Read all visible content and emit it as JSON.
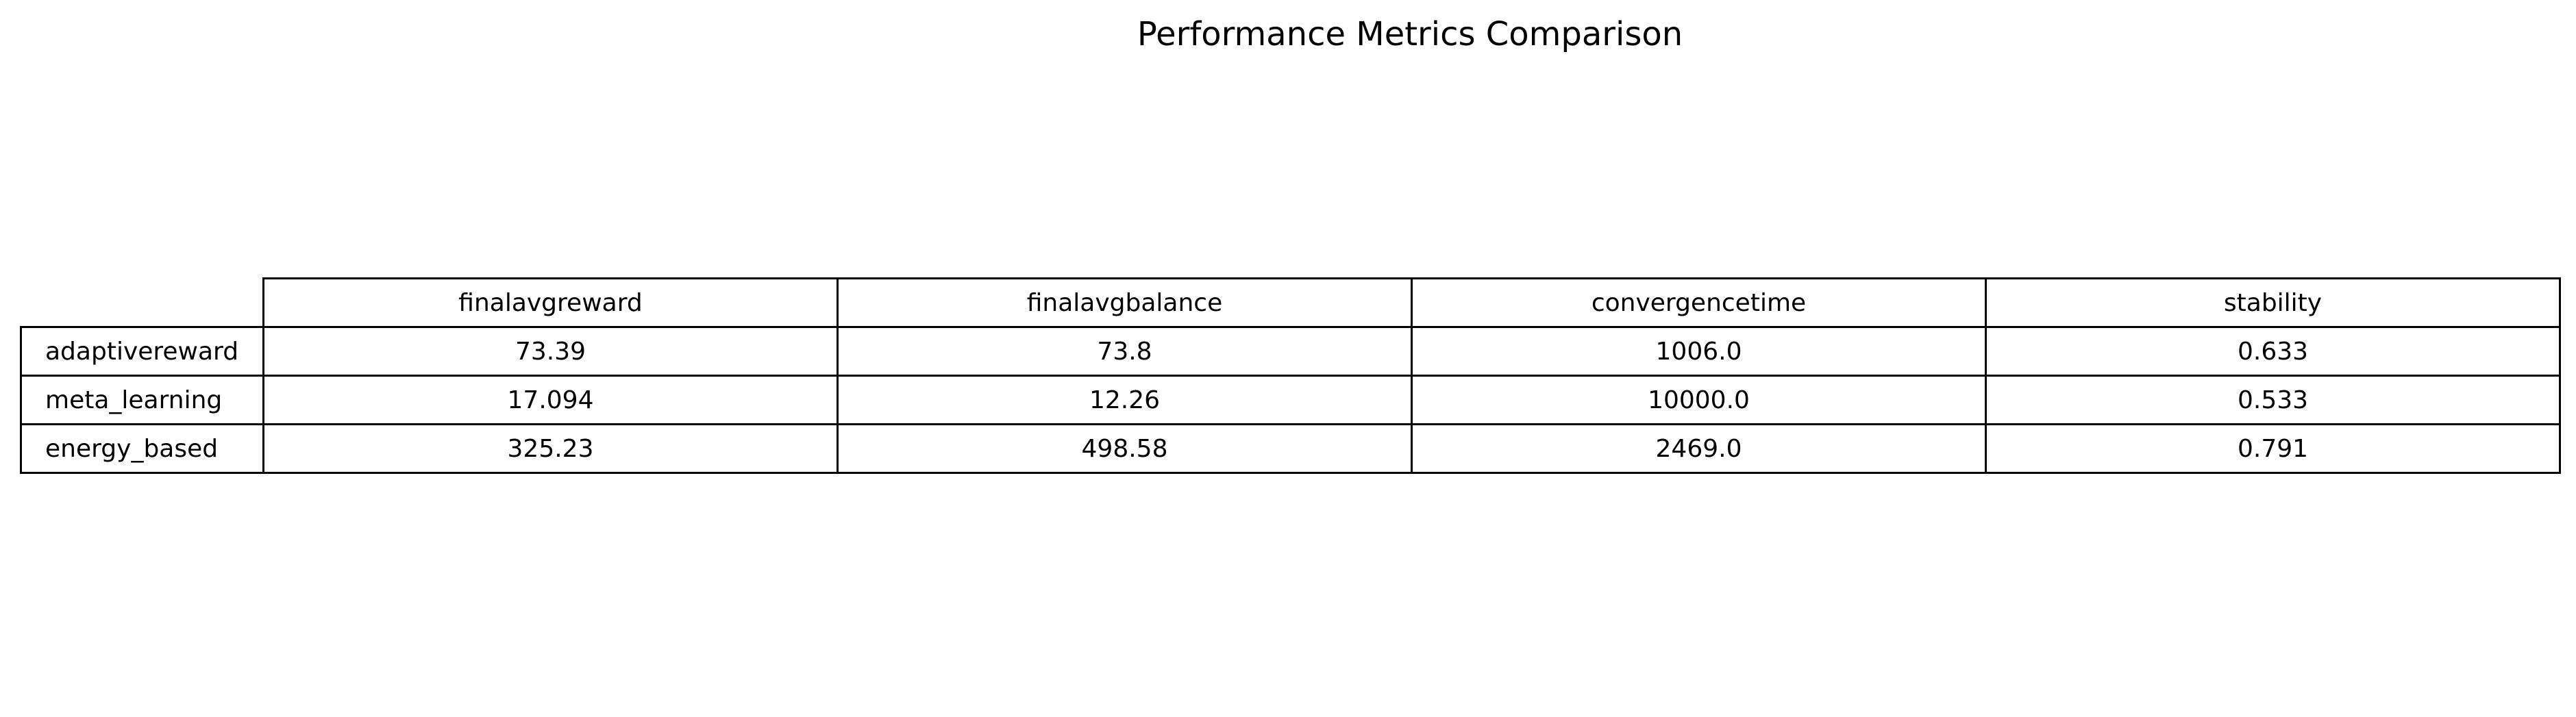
{
  "chart_data": {
    "type": "table",
    "title": "Performance Metrics Comparison",
    "columns": [
      "finalavgreward",
      "finalavgbalance",
      "convergencetime",
      "stability"
    ],
    "rows": [
      {
        "label": "adaptivereward",
        "values": [
          "73.39",
          "73.8",
          "1006.0",
          "0.633"
        ]
      },
      {
        "label": "meta_learning",
        "values": [
          "17.094",
          "12.26",
          "10000.0",
          "0.533"
        ]
      },
      {
        "label": "energy_based",
        "values": [
          "325.23",
          "498.58",
          "2469.0",
          "0.791"
        ]
      }
    ]
  }
}
